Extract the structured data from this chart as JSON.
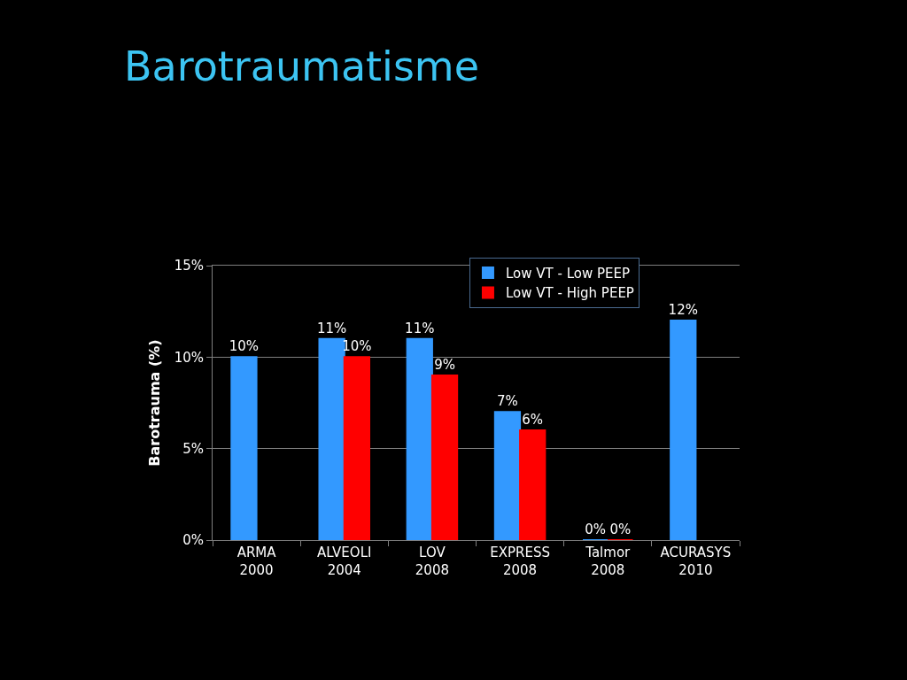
{
  "chart_data": {
    "type": "bar",
    "title": "Barotraumatisme",
    "ylabel": "Barotrauma (%)",
    "categories": [
      "ARMA\n2000",
      "ALVEOLI\n2004",
      "LOV\n2008",
      "EXPRESS\n2008",
      "Talmor\n2008",
      "ACURASYS\n2010"
    ],
    "series": [
      {
        "name": "Low VT - Low PEEP",
        "color": "#3399ff",
        "values": [
          10,
          11,
          11,
          7,
          0,
          12
        ],
        "value_labels": [
          "10%",
          "11%",
          "11%",
          "7%",
          "0%",
          "12%"
        ]
      },
      {
        "name": "Low VT - High PEEP",
        "color": "#ff0000",
        "values": [
          null,
          10,
          9,
          6,
          0,
          null
        ],
        "value_labels": [
          null,
          "10%",
          "9%",
          "6%",
          "0%",
          null
        ]
      }
    ],
    "ylim": [
      0,
      15
    ],
    "yticks": [
      {
        "value": 0,
        "label": "0%"
      },
      {
        "value": 5,
        "label": "5%"
      },
      {
        "value": 10,
        "label": "10%"
      },
      {
        "value": 15,
        "label": "15%"
      }
    ],
    "grid": "y",
    "legend": "top right"
  }
}
